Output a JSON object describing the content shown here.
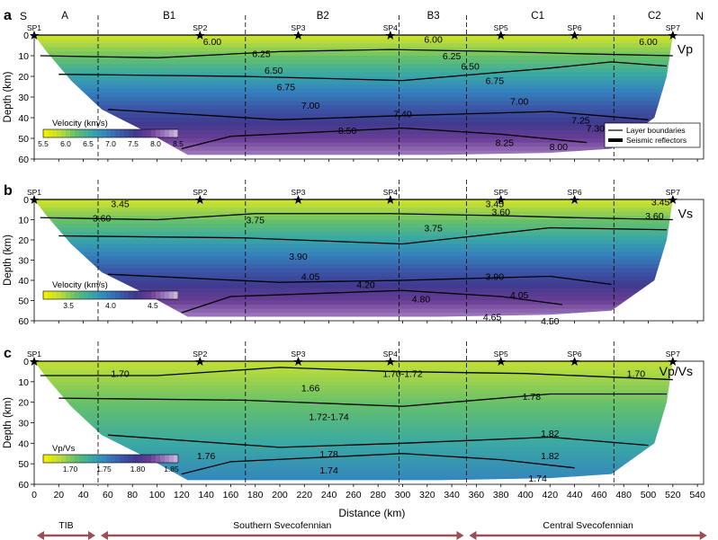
{
  "figure": {
    "direction_left": "S",
    "direction_right": "N",
    "xlabel": "Distance (km)",
    "ylabel": "Depth (km)",
    "x_ticks": [
      0,
      20,
      40,
      60,
      80,
      100,
      120,
      140,
      160,
      180,
      200,
      220,
      240,
      260,
      280,
      300,
      320,
      340,
      360,
      380,
      400,
      420,
      440,
      460,
      480,
      500,
      520,
      540
    ],
    "y_ticks": [
      0,
      10,
      20,
      30,
      40,
      50,
      60
    ],
    "xlim": [
      0,
      550
    ],
    "ylim": [
      0,
      60
    ],
    "shot_points": [
      {
        "label": "SP1",
        "x": 0
      },
      {
        "label": "SP2",
        "x": 135
      },
      {
        "label": "SP3",
        "x": 215
      },
      {
        "label": "SP4",
        "x": 290
      },
      {
        "label": "SP5",
        "x": 380
      },
      {
        "label": "SP6",
        "x": 440
      },
      {
        "label": "SP7",
        "x": 520
      }
    ],
    "blocks": [
      {
        "label": "A",
        "x": 25
      },
      {
        "label": "B1",
        "x": 110
      },
      {
        "label": "B2",
        "x": 235
      },
      {
        "label": "B3",
        "x": 325
      },
      {
        "label": "C1",
        "x": 410
      },
      {
        "label": "C2",
        "x": 505
      }
    ],
    "boundaries_x": [
      52,
      172,
      297,
      352,
      472
    ],
    "provinces": [
      {
        "label": "TIB",
        "from": 0,
        "to": 52
      },
      {
        "label": "Southern Svecofennian",
        "from": 52,
        "to": 352
      },
      {
        "label": "Central Svecofennian",
        "from": 352,
        "to": 550
      }
    ]
  },
  "chart_data": [
    {
      "type": "heatmap",
      "panel": "a",
      "quantity": "Vp",
      "colorbar_label": "Velocity (km/s)",
      "colorbar_ticks": [
        5.5,
        6.0,
        6.5,
        7.0,
        7.5,
        8.0,
        8.5
      ],
      "colorbar_range": [
        5.5,
        8.5
      ],
      "colors": [
        "#f2ef00",
        "#b9dc3b",
        "#64bf6c",
        "#3aa9a3",
        "#3585be",
        "#3a5aa8",
        "#3e3a8e",
        "#6a3d95",
        "#a07cc0",
        "#d9c9e8"
      ],
      "legend": [
        "Layer boundaries",
        "Seismic reflectors"
      ],
      "layers": [
        {
          "x": [
            0,
            520
          ],
          "y": [
            0,
            0
          ]
        },
        {
          "x": [
            5,
            100,
            200,
            290,
            380,
            440,
            520
          ],
          "y": [
            10,
            11,
            8,
            7,
            8,
            9,
            10
          ]
        },
        {
          "x": [
            20,
            170,
            300,
            420,
            470,
            515
          ],
          "y": [
            19,
            20,
            22,
            16,
            13,
            15
          ]
        },
        {
          "x": [
            60,
            200,
            300,
            420,
            500
          ],
          "y": [
            36,
            41,
            39,
            37,
            41
          ]
        },
        {
          "x": [
            120,
            160,
            300,
            380,
            450
          ],
          "y": [
            55,
            49,
            45,
            48,
            52
          ]
        }
      ],
      "labels": [
        {
          "text": "6.00",
          "x": 145,
          "y": 3
        },
        {
          "text": "6.00",
          "x": 325,
          "y": 2
        },
        {
          "text": "6.00",
          "x": 500,
          "y": 3
        },
        {
          "text": "6.25",
          "x": 185,
          "y": 9
        },
        {
          "text": "6.25",
          "x": 340,
          "y": 10
        },
        {
          "text": "6.50",
          "x": 195,
          "y": 17
        },
        {
          "text": "6.50",
          "x": 355,
          "y": 15
        },
        {
          "text": "6.75",
          "x": 205,
          "y": 25
        },
        {
          "text": "6.75",
          "x": 375,
          "y": 22
        },
        {
          "text": "7.00",
          "x": 225,
          "y": 34
        },
        {
          "text": "7.00",
          "x": 395,
          "y": 32
        },
        {
          "text": "7.40",
          "x": 300,
          "y": 38
        },
        {
          "text": "7.25",
          "x": 445,
          "y": 41
        },
        {
          "text": "8.50",
          "x": 255,
          "y": 46
        },
        {
          "text": "7.30",
          "x": 457,
          "y": 45
        },
        {
          "text": "8.25",
          "x": 383,
          "y": 52
        },
        {
          "text": "8.00",
          "x": 427,
          "y": 54
        }
      ]
    },
    {
      "type": "heatmap",
      "panel": "b",
      "quantity": "Vs",
      "colorbar_label": "Velocity (km/s)",
      "colorbar_ticks": [
        3.5,
        4.0,
        4.5
      ],
      "colorbar_range": [
        3.2,
        4.8
      ],
      "colors": [
        "#f2ef00",
        "#b9dc3b",
        "#64bf6c",
        "#3aa9a3",
        "#3585be",
        "#3a5aa8",
        "#3e3a8e",
        "#6a3d95",
        "#a07cc0",
        "#d9c9e8"
      ],
      "layers": [
        {
          "x": [
            0,
            520
          ],
          "y": [
            0,
            0
          ]
        },
        {
          "x": [
            5,
            100,
            180,
            290,
            380,
            440,
            520
          ],
          "y": [
            9,
            10,
            7,
            7,
            8,
            9,
            10
          ]
        },
        {
          "x": [
            20,
            170,
            300,
            420,
            515
          ],
          "y": [
            18,
            19,
            22,
            14,
            15
          ]
        },
        {
          "x": [
            60,
            200,
            300,
            420,
            470
          ],
          "y": [
            37,
            41,
            40,
            38,
            42
          ]
        },
        {
          "x": [
            120,
            160,
            300,
            380,
            430
          ],
          "y": [
            56,
            48,
            45,
            48,
            52
          ]
        }
      ],
      "labels": [
        {
          "text": "3.45",
          "x": 70,
          "y": 2
        },
        {
          "text": "3.45",
          "x": 375,
          "y": 2
        },
        {
          "text": "3.45",
          "x": 510,
          "y": 1
        },
        {
          "text": "3.60",
          "x": 55,
          "y": 9
        },
        {
          "text": "3.60",
          "x": 380,
          "y": 6
        },
        {
          "text": "3.60",
          "x": 505,
          "y": 8
        },
        {
          "text": "3.75",
          "x": 180,
          "y": 10
        },
        {
          "text": "3.75",
          "x": 325,
          "y": 14
        },
        {
          "text": "3.90",
          "x": 215,
          "y": 28
        },
        {
          "text": "3.90",
          "x": 375,
          "y": 38
        },
        {
          "text": "4.05",
          "x": 225,
          "y": 38
        },
        {
          "text": "4.05",
          "x": 395,
          "y": 47
        },
        {
          "text": "4.20",
          "x": 270,
          "y": 42
        },
        {
          "text": "4.80",
          "x": 315,
          "y": 49
        },
        {
          "text": "4.65",
          "x": 373,
          "y": 58
        },
        {
          "text": "4.50",
          "x": 420,
          "y": 60
        }
      ]
    },
    {
      "type": "heatmap",
      "panel": "c",
      "quantity": "Vp/Vs",
      "colorbar_label": "Vp/Vs",
      "colorbar_ticks": [
        1.7,
        1.75,
        1.8,
        1.85
      ],
      "colorbar_range": [
        1.66,
        1.86
      ],
      "colors": [
        "#f2ef00",
        "#b9dc3b",
        "#64bf6c",
        "#3aa9a3",
        "#3585be",
        "#3a5aa8",
        "#3e3a8e",
        "#6a3d95",
        "#a07cc0",
        "#d9c9e8"
      ],
      "layers": [
        {
          "x": [
            0,
            520
          ],
          "y": [
            0,
            0
          ]
        },
        {
          "x": [
            5,
            100,
            200,
            290,
            400,
            520
          ],
          "y": [
            7,
            7,
            3,
            5,
            6,
            9
          ]
        },
        {
          "x": [
            20,
            170,
            300,
            420,
            515
          ],
          "y": [
            18,
            19,
            22,
            16,
            16
          ]
        },
        {
          "x": [
            60,
            200,
            300,
            420,
            500
          ],
          "y": [
            36,
            42,
            40,
            37,
            41
          ]
        },
        {
          "x": [
            120,
            160,
            300,
            380,
            440
          ],
          "y": [
            55,
            49,
            45,
            48,
            52
          ]
        }
      ],
      "labels": [
        {
          "text": "1.70",
          "x": 70,
          "y": 6
        },
        {
          "text": "1.70-1.72",
          "x": 300,
          "y": 6
        },
        {
          "text": "1.70",
          "x": 490,
          "y": 6
        },
        {
          "text": "1.66",
          "x": 225,
          "y": 13
        },
        {
          "text": "1.78",
          "x": 405,
          "y": 17
        },
        {
          "text": "1.72-1.74",
          "x": 240,
          "y": 27
        },
        {
          "text": "1.82",
          "x": 420,
          "y": 35
        },
        {
          "text": "1.76",
          "x": 140,
          "y": 46
        },
        {
          "text": "1.78",
          "x": 240,
          "y": 45
        },
        {
          "text": "1.82",
          "x": 420,
          "y": 46
        },
        {
          "text": "1.74",
          "x": 240,
          "y": 53
        },
        {
          "text": "1.74",
          "x": 410,
          "y": 57
        }
      ]
    }
  ]
}
